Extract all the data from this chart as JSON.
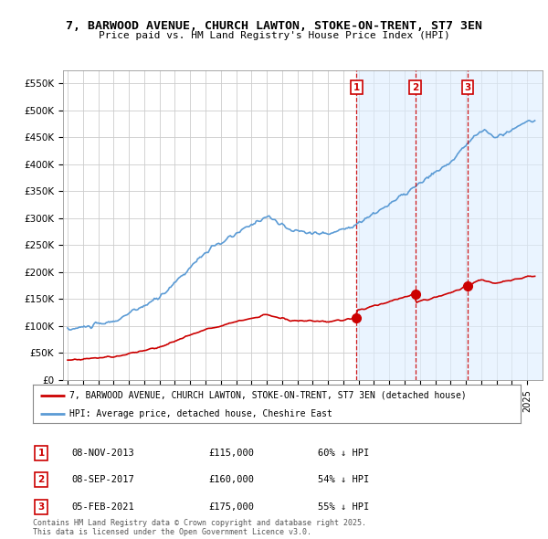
{
  "title_line1": "7, BARWOOD AVENUE, CHURCH LAWTON, STOKE-ON-TRENT, ST7 3EN",
  "title_line2": "Price paid vs. HM Land Registry's House Price Index (HPI)",
  "ylim": [
    0,
    575000
  ],
  "yticks": [
    0,
    50000,
    100000,
    150000,
    200000,
    250000,
    300000,
    350000,
    400000,
    450000,
    500000,
    550000
  ],
  "ytick_labels": [
    "£0",
    "£50K",
    "£100K",
    "£150K",
    "£200K",
    "£250K",
    "£300K",
    "£350K",
    "£400K",
    "£450K",
    "£500K",
    "£550K"
  ],
  "hpi_color": "#5b9bd5",
  "hpi_shade_color": "#ddeeff",
  "price_color": "#cc0000",
  "vline_color": "#cc0000",
  "background_color": "#ffffff",
  "grid_color": "#cccccc",
  "transactions": [
    {
      "label": "1",
      "date_num": 2013.86,
      "price": 115000
    },
    {
      "label": "2",
      "date_num": 2017.69,
      "price": 160000
    },
    {
      "label": "3",
      "date_num": 2021.1,
      "price": 175000
    }
  ],
  "legend_entries": [
    "7, BARWOOD AVENUE, CHURCH LAWTON, STOKE-ON-TRENT, ST7 3EN (detached house)",
    "HPI: Average price, detached house, Cheshire East"
  ],
  "table_rows": [
    {
      "num": "1",
      "date": "08-NOV-2013",
      "price": "£115,000",
      "pct": "60% ↓ HPI"
    },
    {
      "num": "2",
      "date": "08-SEP-2017",
      "price": "£160,000",
      "pct": "54% ↓ HPI"
    },
    {
      "num": "3",
      "date": "05-FEB-2021",
      "price": "£175,000",
      "pct": "55% ↓ HPI"
    }
  ],
  "footer": "Contains HM Land Registry data © Crown copyright and database right 2025.\nThis data is licensed under the Open Government Licence v3.0."
}
